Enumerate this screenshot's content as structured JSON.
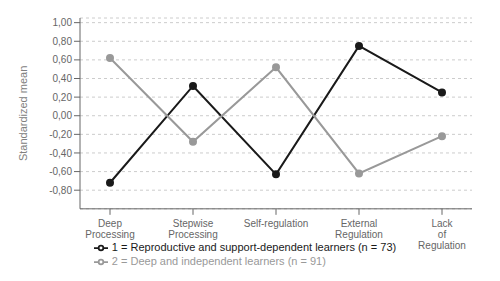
{
  "chart_data": {
    "type": "line",
    "categories": [
      "Deep Processing",
      "Stepwise Processing",
      "Self-regulation",
      "External Regulation",
      "Lack of Regulation"
    ],
    "series": [
      {
        "name": "1 = Reproductive and support-dependent learners (n = 73)",
        "color": "#1a1a1a",
        "values": [
          -0.72,
          0.32,
          -0.63,
          0.75,
          0.25
        ]
      },
      {
        "name": "2 = Deep and independent learners (n = 91)",
        "color": "#999999",
        "values": [
          0.62,
          -0.28,
          0.52,
          -0.62,
          -0.22
        ]
      }
    ],
    "ylabel": "Standardized mean",
    "ylim": [
      -1.0,
      1.05
    ],
    "yticks": [
      {
        "value": -0.8,
        "label": "-0,80"
      },
      {
        "value": -0.6,
        "label": "-0,60"
      },
      {
        "value": -0.4,
        "label": "-0,40"
      },
      {
        "value": -0.2,
        "label": "-0,20"
      },
      {
        "value": 0.0,
        "label": "0,00"
      },
      {
        "value": 0.2,
        "label": "0,20"
      },
      {
        "value": 0.4,
        "label": "0,40"
      },
      {
        "value": 0.6,
        "label": "0,60"
      },
      {
        "value": 0.8,
        "label": "0,80"
      },
      {
        "value": 1.0,
        "label": "1,00"
      }
    ],
    "grid": true,
    "legend": "bottom",
    "marker": "circle"
  }
}
